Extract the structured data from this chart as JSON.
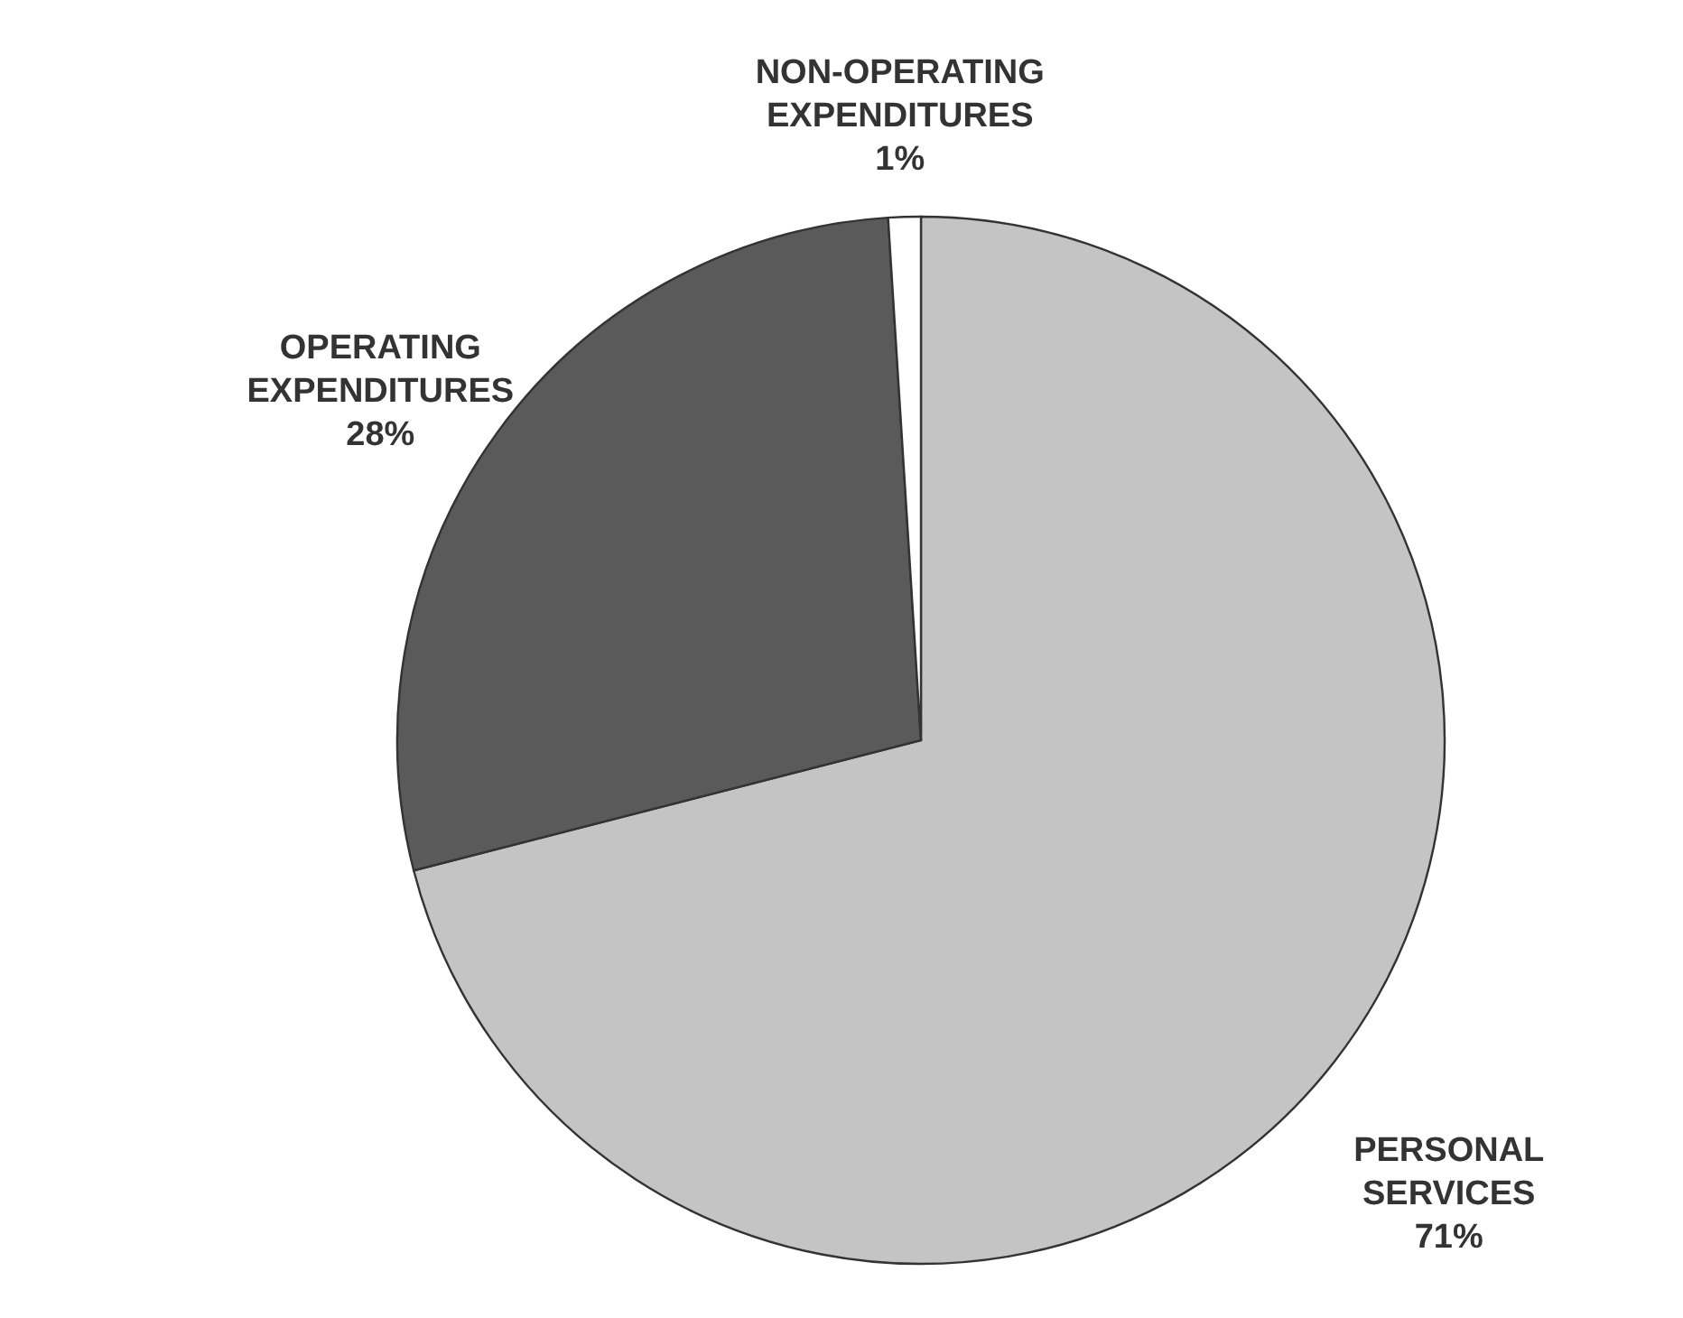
{
  "chart_data": {
    "type": "pie",
    "categories": [
      "PERSONAL SERVICES",
      "OPERATING EXPENDITURES",
      "NON-OPERATING EXPENDITURES"
    ],
    "values": [
      71,
      28,
      1
    ],
    "colors": [
      "#c4c4c4",
      "#5a5a5a",
      "#ffffff"
    ],
    "value_labels": [
      "71%",
      "28%",
      "1%"
    ]
  }
}
